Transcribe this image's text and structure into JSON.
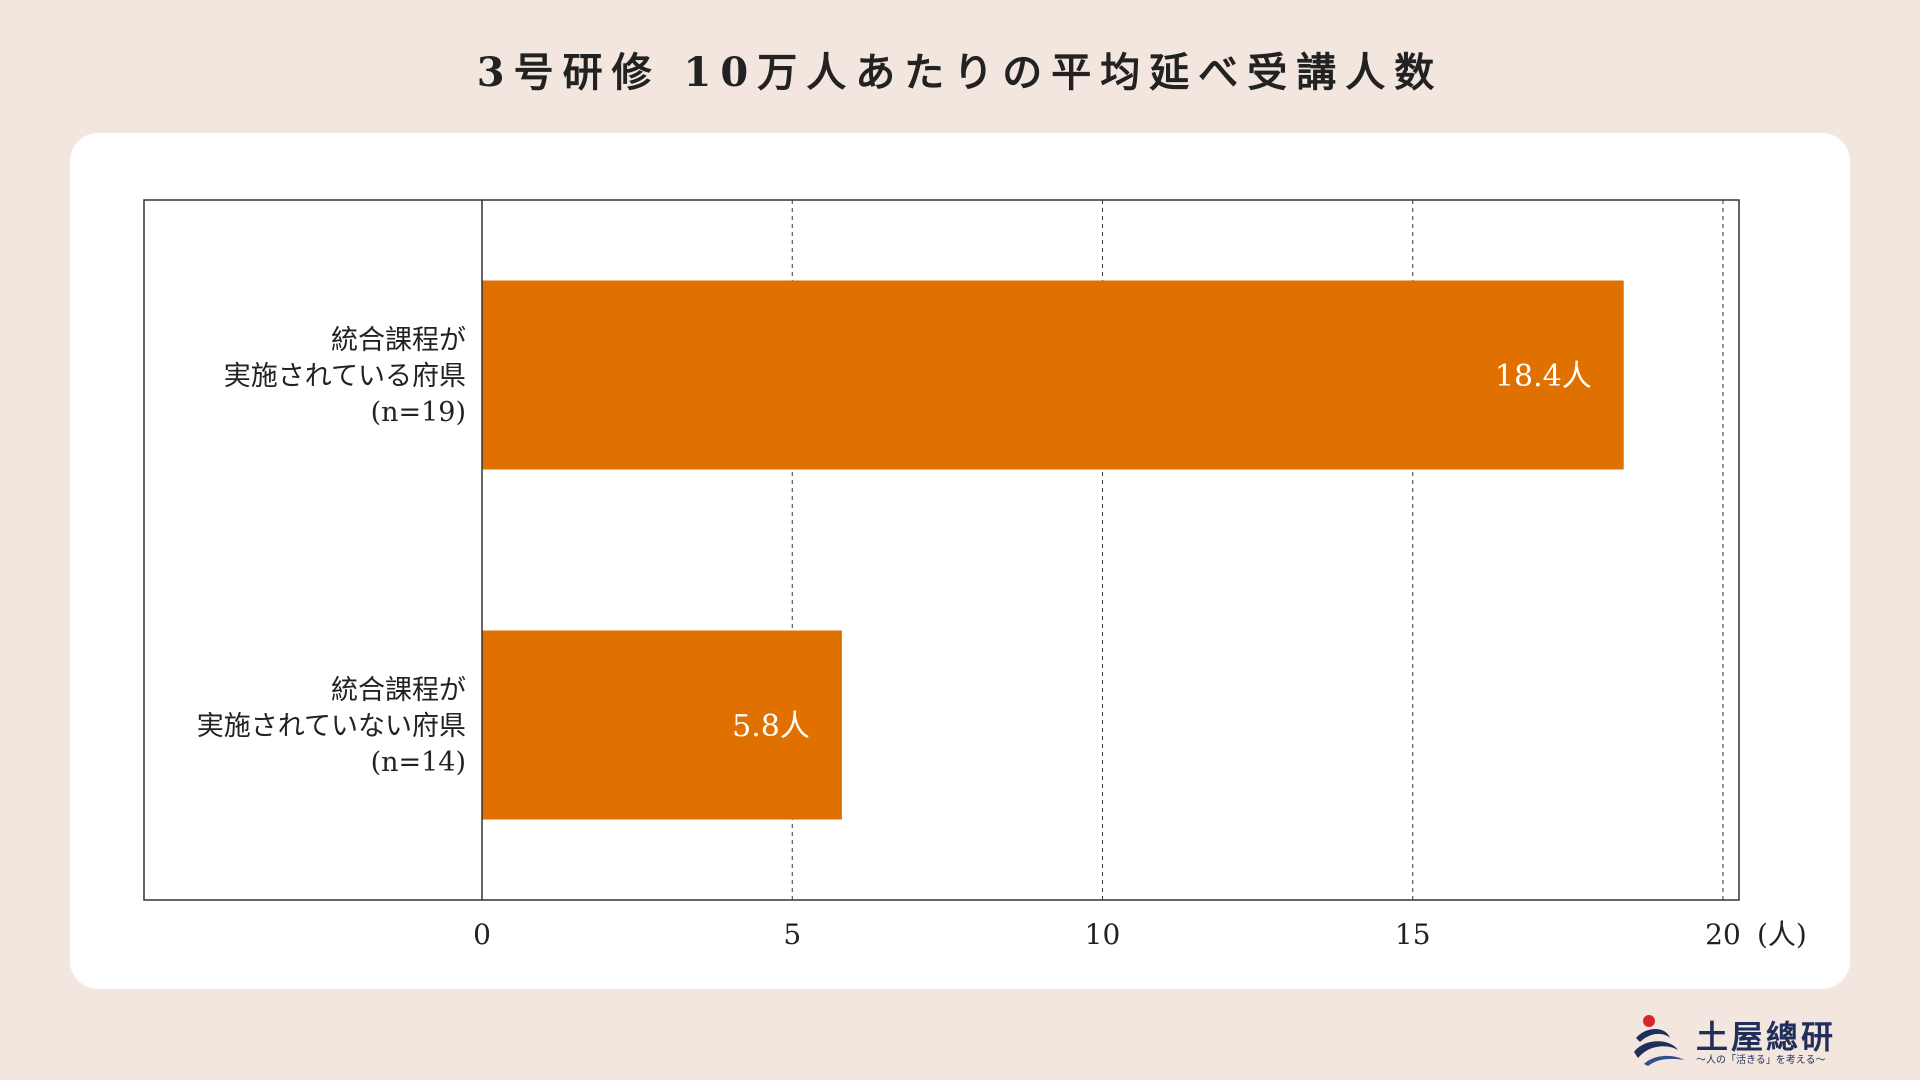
{
  "title": "3号研修 10万人あたりの平均延べ受講人数",
  "chart_data": {
    "type": "bar",
    "orientation": "horizontal",
    "title": "3号研修 10万人あたりの平均延べ受講人数",
    "categories": [
      [
        "統合課程が",
        "実施されている府県",
        "(n=19)"
      ],
      [
        "統合課程が",
        "実施されていない府県",
        "(n=14)"
      ]
    ],
    "values": [
      18.4,
      5.8
    ],
    "value_labels": [
      "18.4人",
      "5.8人"
    ],
    "xlim": [
      0,
      20
    ],
    "xticks": [
      0,
      5,
      10,
      15,
      20
    ],
    "xtick_labels": [
      "0",
      "5",
      "10",
      "15",
      "20"
    ],
    "xunit": "(人)",
    "grid": "vertical dashed",
    "bar_color": "#e07000"
  },
  "logo": {
    "name": "土屋總研",
    "tagline": "〜人の「活きる」を考える〜"
  },
  "colors": {
    "background": "#f3e6df",
    "card": "#ffffff",
    "bar": "#e07000",
    "logo": "#1f2f5a",
    "logo_accent": "#d8262e"
  }
}
